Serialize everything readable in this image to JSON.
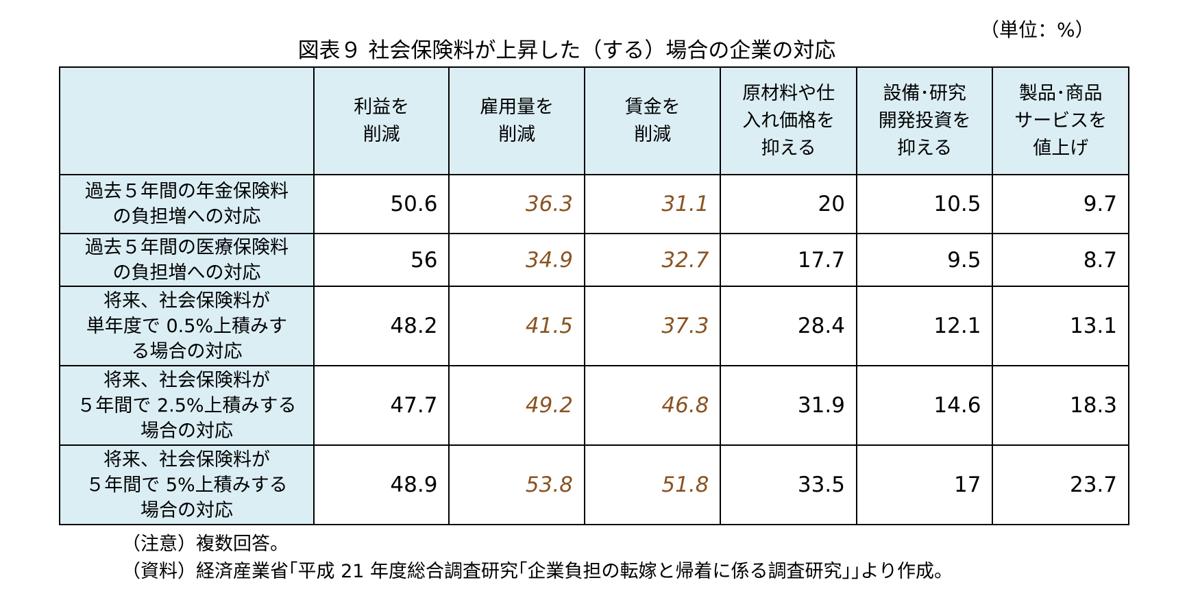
{
  "unit_label": "（単位：%）",
  "title": "図表９ 社会保険料が上昇した（する）場合の企業の対応",
  "chart_data": {
    "type": "table",
    "columns": [
      "利益を\n削減",
      "雇用量を\n削減",
      "賃金を\n削減",
      "原材料や仕\n入れ価格を\n抑える",
      "設備･研究\n開発投資を\n抑える",
      "製品･商品\nサービスを\n値上げ"
    ],
    "rows": [
      {
        "label": "過去５年間の年金保険料\nの負担増への対応",
        "values": [
          "50.6",
          "36.3",
          "31.1",
          "20",
          "10.5",
          "9.7"
        ]
      },
      {
        "label": "過去５年間の医療保険料\nの負担増への対応",
        "values": [
          "56",
          "34.9",
          "32.7",
          "17.7",
          "9.5",
          "8.7"
        ]
      },
      {
        "label": "将来、社会保険料が\n単年度で 0.5%上積みす\nる場合の対応",
        "values": [
          "48.2",
          "41.5",
          "37.3",
          "28.4",
          "12.1",
          "13.1"
        ]
      },
      {
        "label": "将来、社会保険料が\n５年間で 2.5%上積みする\n場合の対応",
        "values": [
          "47.7",
          "49.2",
          "46.8",
          "31.9",
          "14.6",
          "18.3"
        ]
      },
      {
        "label": "将来、社会保険料が\n５年間で 5%上積みする\n場合の対応",
        "values": [
          "48.9",
          "53.8",
          "51.8",
          "33.5",
          "17",
          "23.7"
        ]
      }
    ],
    "highlighted_columns": [
      1,
      2
    ],
    "highlight_color": "#8a5321",
    "header_bg_color": "#dbeef4"
  },
  "notes": [
    "（注意）複数回答。",
    "（資料）経済産業省｢平成 21 年度総合調査研究｢企業負担の転嫁と帰着に係る調査研究｣｣より作成。"
  ]
}
